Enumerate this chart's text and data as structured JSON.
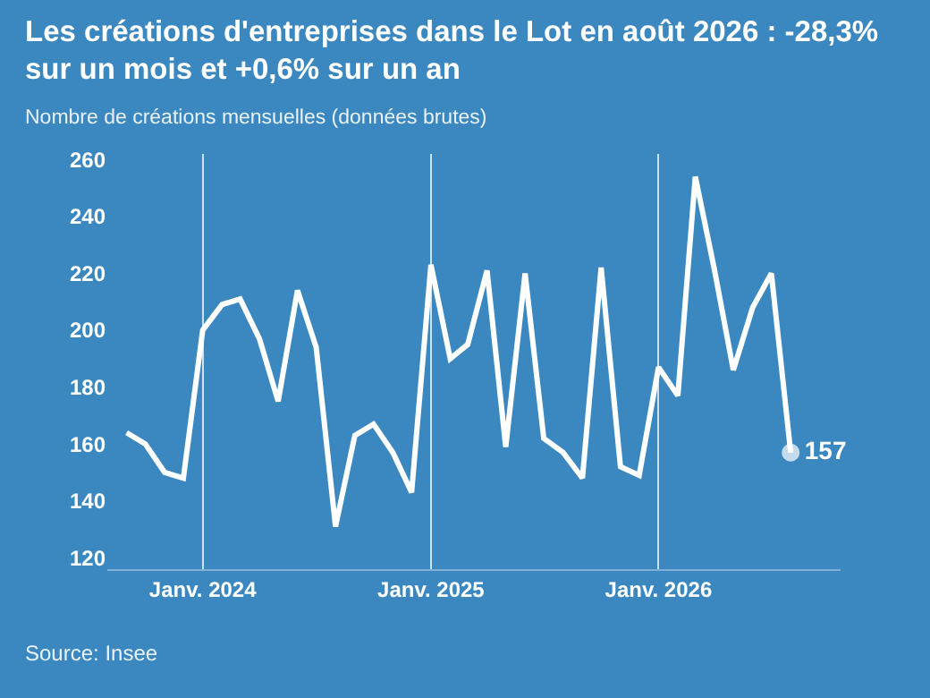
{
  "chart_data": {
    "type": "line",
    "title": "Les créations d'entreprises dans le Lot en août 2026 : -28,3% sur un mois et +0,6% sur un an",
    "subtitle": "Nombre de créations mensuelles (données brutes)",
    "x": [
      "2023-09",
      "2023-10",
      "2023-11",
      "2023-12",
      "2024-01",
      "2024-02",
      "2024-03",
      "2024-04",
      "2024-05",
      "2024-06",
      "2024-07",
      "2024-08",
      "2024-09",
      "2024-10",
      "2024-11",
      "2024-12",
      "2025-01",
      "2025-02",
      "2025-03",
      "2025-04",
      "2025-05",
      "2025-06",
      "2025-07",
      "2025-08",
      "2025-09",
      "2025-10",
      "2025-11",
      "2025-12",
      "2026-01",
      "2026-02",
      "2026-03",
      "2026-04",
      "2026-05",
      "2026-06",
      "2026-07",
      "2026-08"
    ],
    "series": [
      {
        "color": "#ffffff",
        "values": [
          164,
          160,
          150,
          148,
          200,
          209,
          211,
          197,
          175,
          214,
          194,
          131,
          163,
          167,
          157,
          143,
          223,
          190,
          195,
          221,
          159,
          220,
          162,
          157,
          148,
          222,
          152,
          149,
          187,
          177,
          254,
          221,
          186,
          208,
          220,
          157
        ],
        "value_labels": [
          null,
          null,
          null,
          null,
          null,
          null,
          null,
          null,
          null,
          null,
          null,
          null,
          null,
          null,
          null,
          null,
          null,
          null,
          null,
          null,
          null,
          null,
          null,
          null,
          null,
          null,
          null,
          null,
          null,
          null,
          null,
          null,
          null,
          null,
          null,
          "157"
        ]
      }
    ],
    "xlim": [
      "2023-08-01",
      "2026-10-20"
    ],
    "xticks": [
      {
        "value": "2024-01",
        "label": "Janv. 2024"
      },
      {
        "value": "2025-01",
        "label": "Janv. 2025"
      },
      {
        "value": "2026-01",
        "label": "Janv. 2026"
      }
    ],
    "ylim": [
      116,
      262
    ],
    "yticks": [
      120,
      140,
      160,
      180,
      200,
      220,
      240,
      260
    ],
    "grid": "x",
    "marker": "none",
    "line_style": "solid",
    "annotations": [
      "Source: Insee"
    ]
  }
}
